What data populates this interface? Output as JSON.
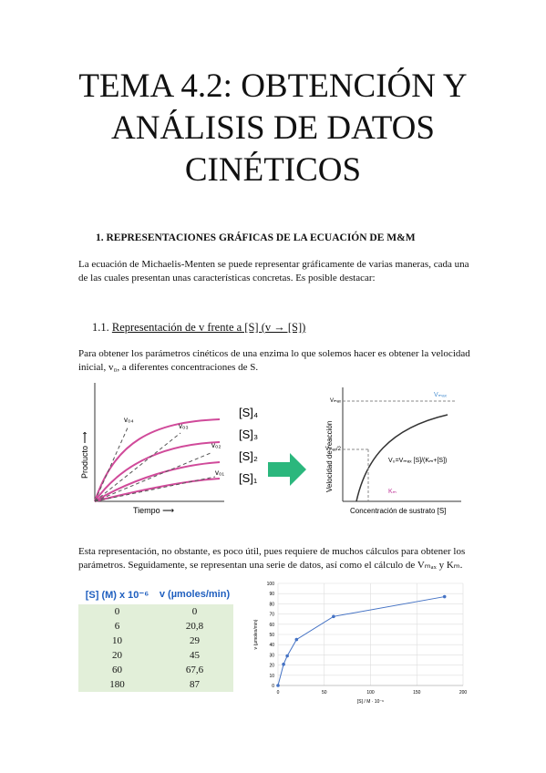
{
  "title": "TEMA 4.2: OBTENCIÓN Y ANÁLISIS DE DATOS CINÉTICOS",
  "section": "1.   REPRESENTACIONES GRÁFICAS DE LA ECUACIÓN DE M&M",
  "intro": "La ecuación de Michaelis-Menten se puede representar gráficamente de varias maneras, cada una de las cuales presentan unas características concretas. Es posible destacar:",
  "subsection": {
    "number": "1.1.",
    "title": "Representación de v frente a [S] (v → [S])"
  },
  "paragraph1": "Para obtener los parámetros cinéticos de una enzima lo que solemos hacer es obtener la velocidad inicial, v₀, a diferentes concentraciones de S.",
  "figure": {
    "left": {
      "tangents": [
        "v₀₄",
        "v₀₃",
        "v₀₂",
        "v₀₁"
      ],
      "curves": [
        "[S]₄",
        "[S]₃",
        "[S]₂",
        "[S]₁"
      ],
      "ylabel": "Producto ⟶",
      "xlabel": "Tiempo ⟶"
    },
    "right": {
      "vmax": "Vₘₐₓ",
      "half": "Vₘₐₓ/2",
      "km": "Kₘ",
      "equation": "V₀=Vₘₐₓ [S]/(Kₘ+[S])",
      "ylabel": "Velocidad de reacción",
      "xlabel": "Concentración de sustrato [S]"
    }
  },
  "paragraph2": "Esta representación, no obstante, es poco útil, pues requiere de muchos cálculos para obtener los parámetros. Seguidamente, se representan una serie de datos, así como el cálculo de Vₘₐₓ y Kₘ.",
  "table": {
    "header": [
      "[S] (M) x 10⁻⁶",
      "v (µmoles/min)"
    ],
    "rows": [
      [
        "0",
        "0"
      ],
      [
        "6",
        "20,8"
      ],
      [
        "10",
        "29"
      ],
      [
        "20",
        "45"
      ],
      [
        "60",
        "67,6"
      ],
      [
        "180",
        "87"
      ]
    ]
  },
  "chart_data": {
    "type": "line",
    "x": [
      0,
      6,
      10,
      20,
      60,
      180
    ],
    "values": [
      0,
      20.8,
      29,
      45,
      67.6,
      87
    ],
    "color": "#4472c4",
    "xlim": [
      0,
      200
    ],
    "xticks": [
      0,
      50,
      100,
      150,
      200
    ],
    "ylim": [
      0,
      100
    ],
    "yticks": [
      0,
      10,
      20,
      30,
      40,
      50,
      60,
      70,
      80,
      90,
      100
    ],
    "xlabel": "[S] / M · 10⁻⁶",
    "ylabel": "v (µmoles/min)",
    "grid": true
  }
}
